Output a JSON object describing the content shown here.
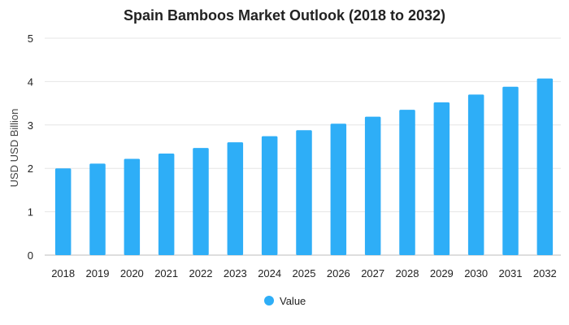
{
  "chart_data": {
    "type": "bar",
    "title": "Spain Bamboos Market Outlook (2018 to 2032)",
    "xlabel": "",
    "ylabel": "USD USD Billion",
    "categories": [
      "2018",
      "2019",
      "2020",
      "2021",
      "2022",
      "2023",
      "2024",
      "2025",
      "2026",
      "2027",
      "2028",
      "2029",
      "2030",
      "2031",
      "2032"
    ],
    "series": [
      {
        "name": "Value",
        "color": "#2eaef7",
        "values": [
          2.0,
          2.11,
          2.22,
          2.34,
          2.47,
          2.6,
          2.74,
          2.88,
          3.03,
          3.19,
          3.35,
          3.52,
          3.7,
          3.88,
          4.07
        ]
      }
    ],
    "ylim": [
      0,
      5
    ],
    "yticks": [
      0,
      1,
      2,
      3,
      4,
      5
    ],
    "grid": true,
    "legend_position": "bottom"
  }
}
